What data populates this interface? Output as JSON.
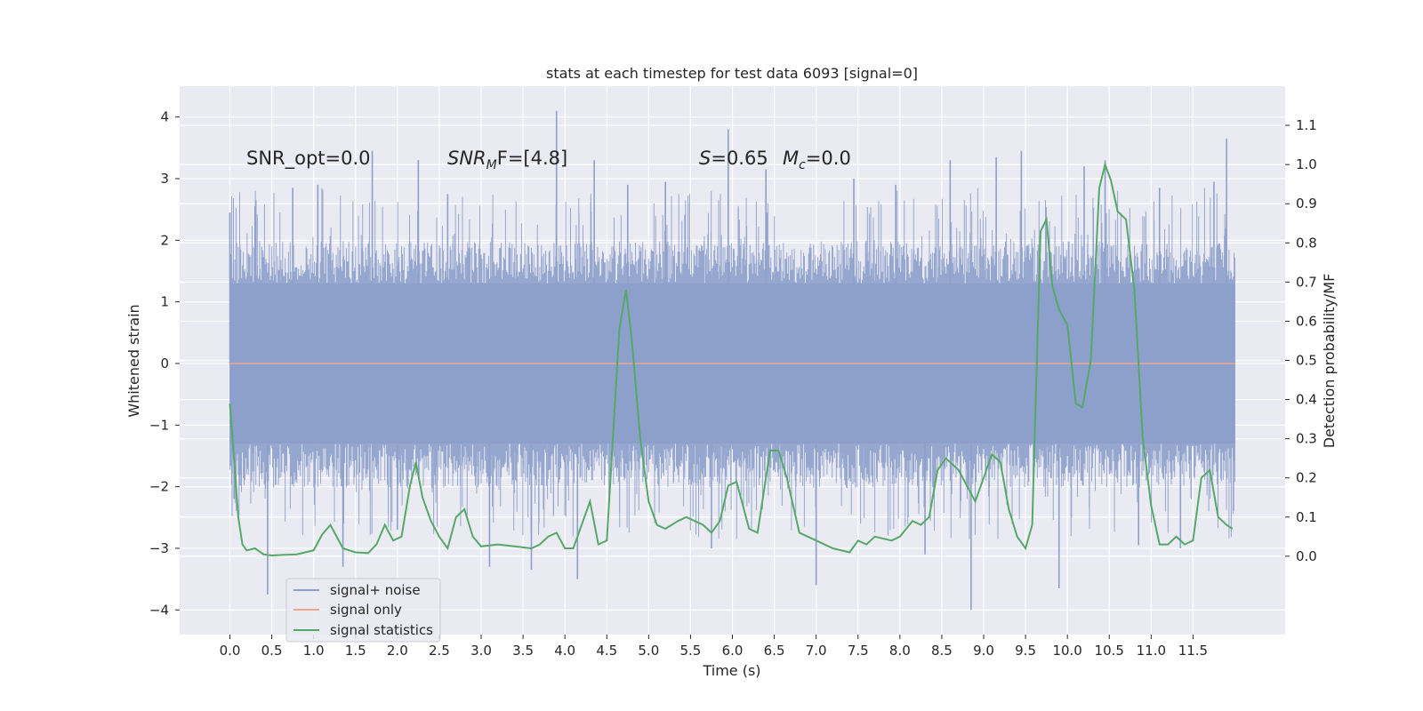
{
  "chart_data": {
    "type": "line",
    "title": "stats at each timestep for test data 6093 [signal=0]",
    "xlabel": "Time (s)",
    "ylabel": "Whitened strain",
    "y2label": "Detection probability/MF",
    "xlim": [
      -0.6,
      12.6
    ],
    "ylim": [
      -4.4,
      4.5
    ],
    "y2lim": [
      -0.2,
      1.2
    ],
    "x_ticks": [
      0.0,
      0.5,
      1.0,
      1.5,
      2.0,
      2.5,
      3.0,
      3.5,
      4.0,
      4.5,
      5.0,
      5.5,
      6.0,
      6.5,
      7.0,
      7.5,
      8.0,
      8.5,
      9.0,
      9.5,
      10.0,
      10.5,
      11.0,
      11.5
    ],
    "x_tick_labels": [
      "0.0",
      "0.5",
      "1.0",
      "1.5",
      "2.0",
      "2.5",
      "3.0",
      "3.5",
      "4.0",
      "4.5",
      "5.0",
      "5.5",
      "6.0",
      "6.5",
      "7.0",
      "7.5",
      "8.0",
      "8.5",
      "9.0",
      "9.5",
      "10.0",
      "10.5",
      "11.0",
      "11.5"
    ],
    "y_ticks": [
      -4,
      -3,
      -2,
      -1,
      0,
      1,
      2,
      3,
      4
    ],
    "y_tick_labels": [
      "−4",
      "−3",
      "−2",
      "−1",
      "0",
      "1",
      "2",
      "3",
      "4"
    ],
    "y2_ticks": [
      0.0,
      0.1,
      0.2,
      0.3,
      0.4,
      0.5,
      0.6,
      0.7,
      0.8,
      0.9,
      1.0,
      1.1
    ],
    "y2_tick_labels": [
      "0.0",
      "0.1",
      "0.2",
      "0.3",
      "0.4",
      "0.5",
      "0.6",
      "0.7",
      "0.8",
      "0.9",
      "1.0",
      "1.1"
    ],
    "grid": true,
    "legend_placement": "lower-left",
    "annotations": {
      "snr_opt": "SNR_opt=0.0",
      "snr_mf_main": "SNR",
      "snr_mf_sub": "M",
      "snr_mf_rest": "F=[4.8]",
      "s_label": "S",
      "s_value": "=0.65",
      "mc_label": "M",
      "mc_sub": "c",
      "mc_value": "=0.0"
    },
    "series": [
      {
        "name": "signal+ noise",
        "axis": "left",
        "color": "#8da0cb",
        "t_start": 0.0,
        "t_end": 12.0,
        "envelope": {
          "core_abs": 1.3,
          "band_abs": 1.95,
          "spikes": [
            {
              "x": 0.0,
              "y": 2.45
            },
            {
              "x": 0.05,
              "y": -2.2
            },
            {
              "x": 0.3,
              "y": 2.55
            },
            {
              "x": 0.45,
              "y": -3.75
            },
            {
              "x": 0.75,
              "y": 2.85
            },
            {
              "x": 1.05,
              "y": 2.9
            },
            {
              "x": 1.35,
              "y": -3.3
            },
            {
              "x": 1.7,
              "y": 3.45
            },
            {
              "x": 2.0,
              "y": -2.7
            },
            {
              "x": 2.25,
              "y": 3.3
            },
            {
              "x": 2.6,
              "y": 2.75
            },
            {
              "x": 3.1,
              "y": -3.3
            },
            {
              "x": 3.6,
              "y": -3.35
            },
            {
              "x": 3.9,
              "y": 4.1
            },
            {
              "x": 4.15,
              "y": -3.5
            },
            {
              "x": 4.35,
              "y": 3.3
            },
            {
              "x": 4.75,
              "y": 2.9
            },
            {
              "x": 5.2,
              "y": 2.95
            },
            {
              "x": 5.75,
              "y": -3.0
            },
            {
              "x": 5.95,
              "y": 3.8
            },
            {
              "x": 6.4,
              "y": 3.15
            },
            {
              "x": 7.0,
              "y": -3.6
            },
            {
              "x": 7.45,
              "y": 3.0
            },
            {
              "x": 7.95,
              "y": 2.9
            },
            {
              "x": 8.3,
              "y": -3.1
            },
            {
              "x": 8.6,
              "y": 3.3
            },
            {
              "x": 8.85,
              "y": -4.0
            },
            {
              "x": 9.15,
              "y": 3.35
            },
            {
              "x": 9.45,
              "y": 3.45
            },
            {
              "x": 9.9,
              "y": -3.65
            },
            {
              "x": 10.2,
              "y": 3.2
            },
            {
              "x": 10.45,
              "y": 3.3
            },
            {
              "x": 10.85,
              "y": -2.95
            },
            {
              "x": 11.1,
              "y": 2.85
            },
            {
              "x": 11.35,
              "y": -3.0
            },
            {
              "x": 11.75,
              "y": 2.95
            },
            {
              "x": 11.9,
              "y": 3.65
            }
          ]
        }
      },
      {
        "name": "signal only",
        "axis": "left",
        "color": "#e9a88e",
        "x": [
          0.0,
          12.0
        ],
        "y": [
          0.0,
          0.0
        ]
      },
      {
        "name": "signal statistics",
        "axis": "right",
        "color": "#55a868",
        "x": [
          0.0,
          0.1,
          0.15,
          0.2,
          0.3,
          0.4,
          0.5,
          0.6,
          0.8,
          1.0,
          1.1,
          1.2,
          1.25,
          1.35,
          1.5,
          1.65,
          1.75,
          1.85,
          1.95,
          2.05,
          2.15,
          2.22,
          2.3,
          2.4,
          2.5,
          2.6,
          2.7,
          2.8,
          2.9,
          3.0,
          3.2,
          3.4,
          3.6,
          3.7,
          3.8,
          3.9,
          4.0,
          4.1,
          4.2,
          4.3,
          4.4,
          4.5,
          4.55,
          4.65,
          4.73,
          4.8,
          4.9,
          5.0,
          5.1,
          5.2,
          5.35,
          5.45,
          5.55,
          5.65,
          5.75,
          5.85,
          5.95,
          6.05,
          6.2,
          6.3,
          6.45,
          6.55,
          6.65,
          6.8,
          7.0,
          7.2,
          7.4,
          7.5,
          7.6,
          7.7,
          7.9,
          8.0,
          8.15,
          8.25,
          8.35,
          8.45,
          8.55,
          8.7,
          8.9,
          9.0,
          9.1,
          9.2,
          9.3,
          9.4,
          9.5,
          9.58,
          9.68,
          9.75,
          9.82,
          9.9,
          10.0,
          10.1,
          10.18,
          10.28,
          10.38,
          10.45,
          10.52,
          10.6,
          10.7,
          10.8,
          10.9,
          11.0,
          11.1,
          11.2,
          11.3,
          11.4,
          11.5,
          11.6,
          11.7,
          11.8,
          11.9,
          11.97
        ],
        "y": [
          0.39,
          0.1,
          0.03,
          0.015,
          0.02,
          0.005,
          0.002,
          0.003,
          0.005,
          0.015,
          0.055,
          0.08,
          0.06,
          0.02,
          0.01,
          0.008,
          0.03,
          0.08,
          0.04,
          0.05,
          0.18,
          0.24,
          0.15,
          0.09,
          0.05,
          0.02,
          0.1,
          0.12,
          0.05,
          0.025,
          0.03,
          0.025,
          0.02,
          0.03,
          0.05,
          0.06,
          0.02,
          0.02,
          0.08,
          0.14,
          0.03,
          0.04,
          0.22,
          0.58,
          0.68,
          0.55,
          0.3,
          0.14,
          0.08,
          0.07,
          0.09,
          0.1,
          0.09,
          0.08,
          0.06,
          0.09,
          0.18,
          0.19,
          0.07,
          0.06,
          0.27,
          0.27,
          0.2,
          0.06,
          0.04,
          0.02,
          0.01,
          0.04,
          0.03,
          0.05,
          0.04,
          0.05,
          0.09,
          0.08,
          0.1,
          0.22,
          0.25,
          0.22,
          0.14,
          0.2,
          0.26,
          0.24,
          0.12,
          0.05,
          0.02,
          0.08,
          0.83,
          0.86,
          0.69,
          0.63,
          0.59,
          0.39,
          0.38,
          0.5,
          0.94,
          1.0,
          0.96,
          0.88,
          0.86,
          0.68,
          0.3,
          0.13,
          0.03,
          0.03,
          0.05,
          0.03,
          0.04,
          0.2,
          0.22,
          0.1,
          0.08,
          0.07
        ]
      }
    ]
  }
}
